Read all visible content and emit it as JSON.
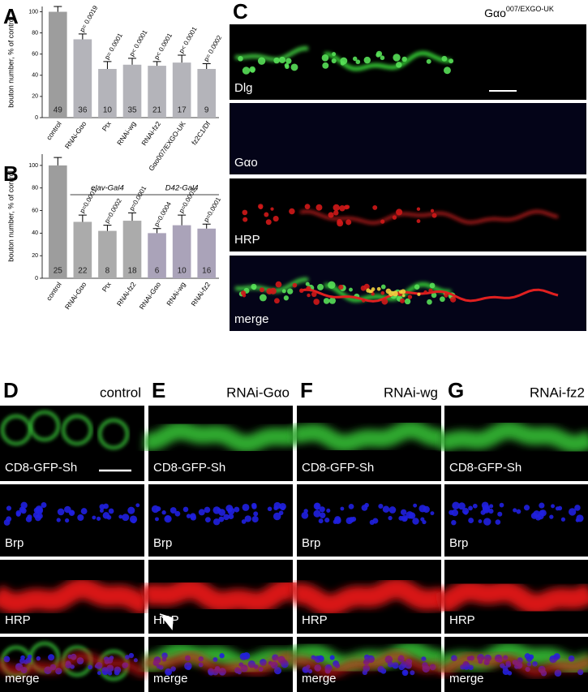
{
  "chart_data": [
    {
      "type": "bar",
      "panel": "A",
      "ylabel": "bouton number, % of control",
      "categories": [
        "control",
        "RNAi-Gαo",
        "Ptx",
        "RNAi-wg",
        "RNAi-fz2",
        "Gαo007/EXGO-UK",
        "fz2C1/Df"
      ],
      "values": [
        100,
        74,
        46,
        50,
        49,
        52,
        46
      ],
      "errors": [
        5,
        5,
        7,
        6,
        4,
        7,
        5
      ],
      "n": [
        49,
        36,
        10,
        35,
        21,
        17,
        9
      ],
      "annotations": [
        "p= 0.0019",
        "p= 0.0001",
        "p< 0.0001",
        "p< 0.0001",
        "p< 0.0001",
        "p= 0.0002"
      ],
      "colors": [
        "#9d9d9d",
        "#b4b4ba",
        "#b4b4ba",
        "#b4b4ba",
        "#b4b4ba",
        "#b4b4ba",
        "#b4b4ba"
      ],
      "ylim": [
        0,
        105
      ],
      "yticks": [
        0,
        20,
        40,
        60,
        80,
        100
      ]
    },
    {
      "type": "bar",
      "panel": "B",
      "ylabel": "bouton number, % of control",
      "categories": [
        "control",
        "RNAi-Gαo",
        "Ptx",
        "RNAi-fz2",
        "RNAi-Gαo",
        "RNAi-wg",
        "RNAi-fz2"
      ],
      "values": [
        100,
        50,
        42,
        51,
        40,
        47,
        44
      ],
      "errors": [
        7,
        6,
        5,
        7,
        4,
        9,
        4
      ],
      "n": [
        25,
        22,
        8,
        18,
        6,
        10,
        16
      ],
      "annotations": [
        "p=0.0001",
        "p=0.0002",
        "p=0.0001",
        "p=0.0004",
        "p=0.0003",
        "p=0.0001"
      ],
      "groups": [
        "elav-Gal4",
        "D42-Gal4"
      ],
      "colors": [
        "#9d9d9d",
        "#ababab",
        "#ababab",
        "#ababab",
        "#aaa3b9",
        "#aaa3b9",
        "#aaa3b9"
      ],
      "ylim": [
        0,
        110
      ],
      "yticks": [
        0,
        20,
        40,
        60,
        80,
        100
      ]
    }
  ],
  "panel_c": {
    "letter": "C",
    "genotype": "Gαo",
    "genotype_sup": "007/EXGO-UK",
    "rows": [
      "Dlg",
      "Gαo",
      "HRP",
      "merge"
    ]
  },
  "panels_dg": {
    "letters": [
      "D",
      "E",
      "F",
      "G"
    ],
    "conditions": [
      "control",
      "RNAi-Gαo",
      "RNAi-wg",
      "RNAi-fz2"
    ],
    "rows": [
      "CD8-GFP-Sh",
      "Brp",
      "HRP",
      "merge"
    ]
  }
}
